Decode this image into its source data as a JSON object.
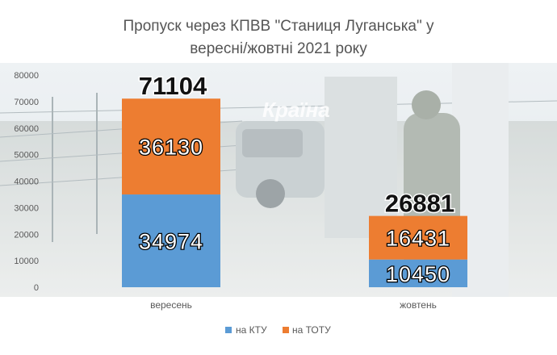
{
  "chart_data": {
    "type": "bar",
    "stacked": true,
    "title_line1": "Пропуск через КПВВ \"Станиця Луганська\" у",
    "title_line2": "вересні/жовтні 2021 року",
    "categories": [
      "вересень",
      "жовтень"
    ],
    "series": [
      {
        "name": "на КТУ",
        "values": [
          34974,
          10450
        ],
        "color": "#5b9bd5"
      },
      {
        "name": "на ТОТУ",
        "values": [
          36130,
          16431
        ],
        "color": "#ed7d31"
      }
    ],
    "totals": [
      71104,
      26881
    ],
    "ylim": [
      0,
      80000
    ],
    "yticks": [
      "0",
      "10000",
      "20000",
      "30000",
      "40000",
      "50000",
      "60000",
      "70000",
      "80000"
    ],
    "watermark": "Країна",
    "grid": false,
    "legend_position": "bottom"
  }
}
